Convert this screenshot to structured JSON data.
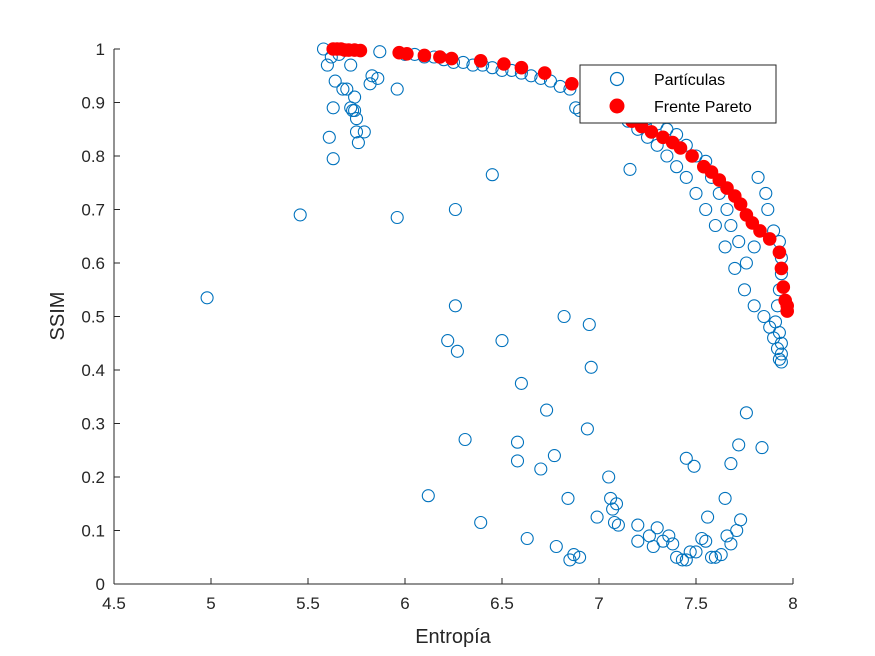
{
  "chart_data": {
    "type": "scatter",
    "xlabel": "Entropía",
    "ylabel": "SSIM",
    "xlim": [
      4.5,
      8
    ],
    "ylim": [
      0,
      1
    ],
    "x_ticks": [
      "4.5",
      "5",
      "5.5",
      "6",
      "6.5",
      "7",
      "7.5",
      "8"
    ],
    "y_ticks": [
      "0",
      "0.1",
      "0.2",
      "0.3",
      "0.4",
      "0.5",
      "0.6",
      "0.7",
      "0.8",
      "0.9",
      "1"
    ],
    "grid": false,
    "legend_position": "top-right",
    "series": [
      {
        "name": "Partículas",
        "marker": "open-circle",
        "color": "#0072BD",
        "points": [
          [
            4.98,
            0.535
          ],
          [
            5.46,
            0.69
          ],
          [
            5.58,
            1.0
          ],
          [
            5.6,
            0.97
          ],
          [
            5.61,
            0.835
          ],
          [
            5.62,
            0.985
          ],
          [
            5.63,
            0.795
          ],
          [
            5.63,
            0.89
          ],
          [
            5.64,
            0.94
          ],
          [
            5.66,
            0.99
          ],
          [
            5.68,
            0.925
          ],
          [
            5.7,
            0.925
          ],
          [
            5.72,
            0.97
          ],
          [
            5.72,
            0.89
          ],
          [
            5.73,
            0.885
          ],
          [
            5.74,
            0.91
          ],
          [
            5.74,
            0.885
          ],
          [
            5.75,
            0.87
          ],
          [
            5.75,
            0.845
          ],
          [
            5.76,
            0.825
          ],
          [
            5.79,
            0.845
          ],
          [
            5.82,
            0.935
          ],
          [
            5.83,
            0.95
          ],
          [
            5.86,
            0.945
          ],
          [
            5.87,
            0.995
          ],
          [
            5.96,
            0.925
          ],
          [
            5.96,
            0.685
          ],
          [
            6.0,
            0.99
          ],
          [
            6.05,
            0.99
          ],
          [
            6.1,
            0.985
          ],
          [
            6.15,
            0.985
          ],
          [
            6.2,
            0.98
          ],
          [
            6.25,
            0.975
          ],
          [
            6.3,
            0.975
          ],
          [
            6.35,
            0.97
          ],
          [
            6.4,
            0.97
          ],
          [
            6.45,
            0.965
          ],
          [
            6.5,
            0.96
          ],
          [
            6.55,
            0.96
          ],
          [
            6.6,
            0.955
          ],
          [
            6.65,
            0.95
          ],
          [
            6.7,
            0.945
          ],
          [
            6.75,
            0.94
          ],
          [
            6.8,
            0.93
          ],
          [
            6.85,
            0.925
          ],
          [
            6.88,
            0.89
          ],
          [
            6.9,
            0.885
          ],
          [
            6.95,
            0.91
          ],
          [
            7.0,
            0.9
          ],
          [
            7.05,
            0.895
          ],
          [
            7.1,
            0.88
          ],
          [
            7.15,
            0.865
          ],
          [
            7.2,
            0.85
          ],
          [
            7.25,
            0.835
          ],
          [
            7.3,
            0.82
          ],
          [
            7.35,
            0.8
          ],
          [
            7.4,
            0.78
          ],
          [
            7.45,
            0.76
          ],
          [
            7.5,
            0.73
          ],
          [
            7.55,
            0.7
          ],
          [
            7.6,
            0.67
          ],
          [
            7.65,
            0.63
          ],
          [
            7.7,
            0.59
          ],
          [
            7.75,
            0.55
          ],
          [
            7.8,
            0.52
          ],
          [
            7.85,
            0.5
          ],
          [
            7.88,
            0.48
          ],
          [
            7.9,
            0.46
          ],
          [
            7.92,
            0.44
          ],
          [
            7.93,
            0.42
          ],
          [
            7.94,
            0.43
          ],
          [
            7.94,
            0.45
          ],
          [
            7.93,
            0.47
          ],
          [
            7.91,
            0.49
          ],
          [
            7.92,
            0.52
          ],
          [
            7.93,
            0.55
          ],
          [
            7.94,
            0.58
          ],
          [
            7.94,
            0.61
          ],
          [
            7.93,
            0.64
          ],
          [
            7.9,
            0.66
          ],
          [
            7.87,
            0.7
          ],
          [
            7.86,
            0.73
          ],
          [
            7.82,
            0.76
          ],
          [
            7.8,
            0.63
          ],
          [
            7.76,
            0.6
          ],
          [
            7.72,
            0.64
          ],
          [
            7.68,
            0.67
          ],
          [
            7.66,
            0.7
          ],
          [
            7.62,
            0.73
          ],
          [
            7.58,
            0.76
          ],
          [
            7.55,
            0.79
          ],
          [
            7.5,
            0.8
          ],
          [
            7.45,
            0.82
          ],
          [
            7.4,
            0.84
          ],
          [
            7.35,
            0.85
          ],
          [
            7.3,
            0.86
          ],
          [
            7.25,
            0.87
          ],
          [
            7.16,
            0.775
          ],
          [
            6.45,
            0.765
          ],
          [
            6.26,
            0.7
          ],
          [
            6.26,
            0.52
          ],
          [
            6.22,
            0.455
          ],
          [
            6.27,
            0.435
          ],
          [
            6.31,
            0.27
          ],
          [
            6.12,
            0.165
          ],
          [
            6.39,
            0.115
          ],
          [
            6.5,
            0.455
          ],
          [
            6.58,
            0.265
          ],
          [
            6.58,
            0.23
          ],
          [
            6.6,
            0.375
          ],
          [
            6.63,
            0.085
          ],
          [
            6.7,
            0.215
          ],
          [
            6.73,
            0.325
          ],
          [
            6.77,
            0.24
          ],
          [
            6.78,
            0.07
          ],
          [
            6.82,
            0.5
          ],
          [
            6.84,
            0.16
          ],
          [
            6.85,
            0.045
          ],
          [
            6.87,
            0.055
          ],
          [
            6.9,
            0.05
          ],
          [
            6.94,
            0.29
          ],
          [
            6.95,
            0.485
          ],
          [
            6.96,
            0.405
          ],
          [
            6.99,
            0.125
          ],
          [
            7.05,
            0.2
          ],
          [
            7.06,
            0.16
          ],
          [
            7.07,
            0.14
          ],
          [
            7.08,
            0.115
          ],
          [
            7.09,
            0.15
          ],
          [
            7.1,
            0.11
          ],
          [
            7.2,
            0.11
          ],
          [
            7.2,
            0.08
          ],
          [
            7.26,
            0.09
          ],
          [
            7.28,
            0.07
          ],
          [
            7.3,
            0.105
          ],
          [
            7.33,
            0.08
          ],
          [
            7.36,
            0.09
          ],
          [
            7.38,
            0.075
          ],
          [
            7.4,
            0.05
          ],
          [
            7.43,
            0.045
          ],
          [
            7.45,
            0.045
          ],
          [
            7.45,
            0.235
          ],
          [
            7.47,
            0.06
          ],
          [
            7.49,
            0.22
          ],
          [
            7.5,
            0.06
          ],
          [
            7.53,
            0.085
          ],
          [
            7.55,
            0.08
          ],
          [
            7.56,
            0.125
          ],
          [
            7.58,
            0.05
          ],
          [
            7.6,
            0.05
          ],
          [
            7.63,
            0.055
          ],
          [
            7.65,
            0.16
          ],
          [
            7.66,
            0.09
          ],
          [
            7.68,
            0.075
          ],
          [
            7.68,
            0.225
          ],
          [
            7.71,
            0.1
          ],
          [
            7.72,
            0.26
          ],
          [
            7.73,
            0.12
          ],
          [
            7.76,
            0.32
          ],
          [
            7.84,
            0.255
          ],
          [
            7.94,
            0.415
          ]
        ]
      },
      {
        "name": "Frente Pareto",
        "marker": "filled-circle",
        "color": "#FF0000",
        "points": [
          [
            5.63,
            1.0
          ],
          [
            5.65,
            1.0
          ],
          [
            5.67,
            1.0
          ],
          [
            5.69,
            0.998
          ],
          [
            5.71,
            0.998
          ],
          [
            5.74,
            0.998
          ],
          [
            5.77,
            0.997
          ],
          [
            5.97,
            0.993
          ],
          [
            6.01,
            0.991
          ],
          [
            6.1,
            0.988
          ],
          [
            6.18,
            0.985
          ],
          [
            6.24,
            0.982
          ],
          [
            6.39,
            0.978
          ],
          [
            6.51,
            0.972
          ],
          [
            6.6,
            0.965
          ],
          [
            6.72,
            0.955
          ],
          [
            6.86,
            0.935
          ],
          [
            7.0,
            0.905
          ],
          [
            7.1,
            0.88
          ],
          [
            7.17,
            0.865
          ],
          [
            7.22,
            0.855
          ],
          [
            7.27,
            0.845
          ],
          [
            7.33,
            0.835
          ],
          [
            7.38,
            0.825
          ],
          [
            7.42,
            0.815
          ],
          [
            7.48,
            0.8
          ],
          [
            7.54,
            0.78
          ],
          [
            7.58,
            0.77
          ],
          [
            7.62,
            0.755
          ],
          [
            7.66,
            0.74
          ],
          [
            7.7,
            0.725
          ],
          [
            7.73,
            0.71
          ],
          [
            7.76,
            0.69
          ],
          [
            7.79,
            0.675
          ],
          [
            7.83,
            0.66
          ],
          [
            7.88,
            0.645
          ],
          [
            7.93,
            0.62
          ],
          [
            7.94,
            0.59
          ],
          [
            7.95,
            0.555
          ],
          [
            7.96,
            0.53
          ],
          [
            7.97,
            0.52
          ],
          [
            7.97,
            0.51
          ]
        ]
      }
    ]
  }
}
